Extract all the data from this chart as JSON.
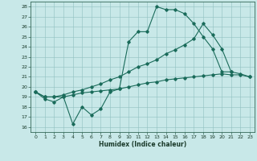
{
  "xlabel": "Humidex (Indice chaleur)",
  "bg_color": "#c8e8e8",
  "line_color": "#1a6b5a",
  "xlim": [
    -0.5,
    23.5
  ],
  "ylim": [
    15.5,
    28.5
  ],
  "xticks": [
    0,
    1,
    2,
    3,
    4,
    5,
    6,
    7,
    8,
    9,
    10,
    11,
    12,
    13,
    14,
    15,
    16,
    17,
    18,
    19,
    20,
    21,
    22,
    23
  ],
  "yticks": [
    16,
    17,
    18,
    19,
    20,
    21,
    22,
    23,
    24,
    25,
    26,
    27,
    28
  ],
  "line1_x": [
    0,
    1,
    2,
    3,
    4,
    5,
    6,
    7,
    8,
    9,
    10,
    11,
    12,
    13,
    14,
    15,
    16,
    17,
    18,
    19,
    20,
    21
  ],
  "line1_y": [
    19.5,
    18.8,
    18.5,
    19.0,
    16.3,
    18.0,
    17.2,
    17.8,
    19.5,
    19.8,
    24.5,
    25.5,
    25.5,
    28.0,
    27.7,
    27.7,
    27.3,
    26.3,
    25.0,
    23.8,
    21.5,
    21.5
  ],
  "line2_x": [
    0,
    1,
    2,
    3,
    4,
    5,
    6,
    7,
    8,
    9,
    10,
    11,
    12,
    13,
    14,
    15,
    16,
    17,
    18,
    19,
    20,
    21,
    22,
    23
  ],
  "line2_y": [
    19.5,
    19.0,
    19.0,
    19.2,
    19.5,
    19.7,
    20.0,
    20.3,
    20.7,
    21.0,
    21.5,
    22.0,
    22.3,
    22.7,
    23.3,
    23.7,
    24.2,
    24.8,
    26.3,
    25.2,
    23.8,
    21.5,
    21.3,
    21.0
  ],
  "line3_x": [
    0,
    1,
    2,
    3,
    4,
    5,
    6,
    7,
    8,
    9,
    10,
    11,
    12,
    13,
    14,
    15,
    16,
    17,
    18,
    19,
    20,
    21,
    22,
    23
  ],
  "line3_y": [
    19.5,
    19.0,
    19.0,
    19.0,
    19.2,
    19.4,
    19.5,
    19.6,
    19.7,
    19.8,
    20.0,
    20.2,
    20.4,
    20.5,
    20.7,
    20.8,
    20.9,
    21.0,
    21.1,
    21.2,
    21.3,
    21.2,
    21.2,
    21.0
  ]
}
